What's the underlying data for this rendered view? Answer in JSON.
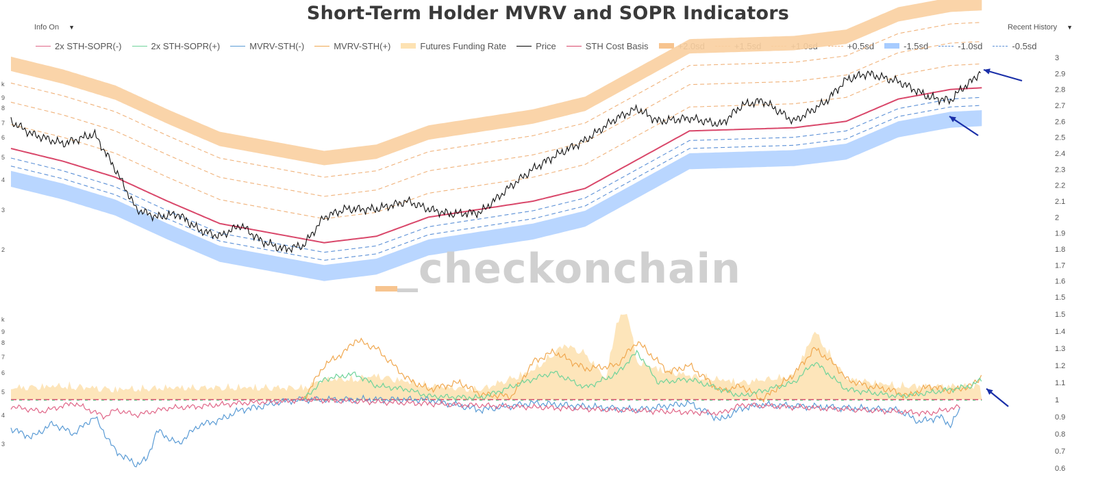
{
  "header": {
    "title": "Short-Term Holder MVRV and SOPR Indicators",
    "info_menu_label": "Info On",
    "history_menu_label": "Recent History",
    "dropdown_glyph": "▼"
  },
  "legend": [
    {
      "label": "2x STH-SOPR(-)",
      "color": "#e06688",
      "style": "solid"
    },
    {
      "label": "2x STH-SOPR(+)",
      "color": "#6fd39a",
      "style": "solid"
    },
    {
      "label": "MVRV-STH(-)",
      "color": "#5a9bd5",
      "style": "solid"
    },
    {
      "label": "MVRV-STH(+)",
      "color": "#f0a850",
      "style": "solid"
    },
    {
      "label": "Futures Funding Rate",
      "color": "#fde2b3",
      "style": "band"
    },
    {
      "label": "Price",
      "color": "#000000",
      "style": "solid"
    },
    {
      "label": "STH Cost Basis",
      "color": "#d9476a",
      "style": "solid"
    },
    {
      "label": "+2.0sd",
      "color": "#f7c48f",
      "style": "band"
    },
    {
      "label": "+1.5sd",
      "color": "#f0b27a",
      "style": "dashed"
    },
    {
      "label": "+1.0sd",
      "color": "#f0b27a",
      "style": "dashed"
    },
    {
      "label": "+0.5sd",
      "color": "#f0b27a",
      "style": "dashed"
    },
    {
      "label": "-1.5sd",
      "color": "#a7ccff",
      "style": "band"
    },
    {
      "label": "-1.0sd",
      "color": "#5a8fd6",
      "style": "dashed"
    },
    {
      "label": "-0.5sd",
      "color": "#5a8fd6",
      "style": "dashed"
    }
  ],
  "watermark": "_checkonchain",
  "chart_data": [
    {
      "type": "line",
      "panel": "price",
      "x_range": [
        0,
        100
      ],
      "y_left_ticks": [
        "k",
        "9",
        "8",
        "7",
        "6",
        "5",
        "4",
        "3",
        "2"
      ],
      "y_right_ticks": [
        "3",
        "2.9",
        "2.8",
        "2.7",
        "2.6",
        "2.5",
        "2.4",
        "2.3",
        "2.2",
        "2.1",
        "2",
        "1.9",
        "1.8",
        "1.7",
        "1.6",
        "1.5"
      ],
      "y_right_range": [
        1.5,
        3.0
      ],
      "series": [
        {
          "name": "STH Cost Basis",
          "x": [
            0,
            5,
            10,
            15,
            20,
            25,
            30,
            35,
            40,
            45,
            50,
            55,
            60,
            65,
            70,
            75,
            80,
            85,
            90,
            93
          ],
          "y": [
            2.43,
            2.35,
            2.25,
            2.1,
            1.96,
            1.9,
            1.84,
            1.88,
            2.0,
            2.05,
            2.1,
            2.18,
            2.36,
            2.54,
            2.55,
            2.56,
            2.6,
            2.74,
            2.8,
            2.81
          ]
        },
        {
          "name": "Price",
          "x": [
            0,
            2,
            5,
            8,
            10,
            12,
            14,
            16,
            18,
            20,
            22,
            24,
            26,
            28,
            30,
            32,
            35,
            38,
            40,
            42,
            45,
            48,
            50,
            52,
            55,
            58,
            60,
            62,
            65,
            68,
            70,
            72,
            75,
            78,
            80,
            82,
            85,
            88,
            90,
            91,
            92,
            93
          ],
          "y": [
            2.6,
            2.52,
            2.46,
            2.52,
            2.3,
            2.05,
            2.0,
            2.02,
            1.92,
            1.88,
            1.95,
            1.85,
            1.8,
            1.82,
            2.0,
            2.05,
            2.05,
            2.1,
            2.05,
            2.02,
            2.03,
            2.2,
            2.3,
            2.38,
            2.48,
            2.62,
            2.68,
            2.6,
            2.62,
            2.58,
            2.7,
            2.73,
            2.6,
            2.72,
            2.86,
            2.9,
            2.85,
            2.75,
            2.73,
            2.8,
            2.85,
            2.92
          ]
        }
      ],
      "bands": {
        "plus_2sd_offset": 0.53,
        "plus_1_5sd_offset": 0.41,
        "plus_1sd_offset": 0.29,
        "plus_0_5sd_offset": 0.15,
        "minus_0_5sd_offset": -0.06,
        "minus_1sd_offset": -0.11,
        "minus_1_5sd_offset": -0.19
      }
    },
    {
      "type": "line",
      "panel": "oscillator",
      "x_range": [
        0,
        100
      ],
      "y_left_ticks": [
        "k",
        "9",
        "8",
        "7",
        "6",
        "5",
        "4",
        "3"
      ],
      "y_right_ticks": [
        "1.5",
        "1.4",
        "1.3",
        "1.2",
        "1.1",
        "1",
        "0.9",
        "0.8",
        "0.7",
        "0.6"
      ],
      "y_right_range": [
        0.6,
        1.5
      ],
      "reference_line": 1.0,
      "series": [
        {
          "name": "MVRV-STH(+)",
          "x": [
            28,
            30,
            32,
            33,
            35,
            38,
            40,
            43,
            45,
            48,
            50,
            52,
            55,
            58,
            60,
            63,
            65,
            68,
            70,
            72,
            75,
            77,
            79,
            80,
            82,
            84,
            86,
            88,
            90,
            92,
            93
          ],
          "y": [
            1.0,
            1.2,
            1.28,
            1.35,
            1.3,
            1.12,
            1.06,
            1.1,
            1.03,
            1.02,
            1.22,
            1.28,
            1.18,
            1.2,
            1.34,
            1.16,
            1.2,
            1.05,
            1.08,
            1.0,
            1.15,
            1.3,
            1.2,
            1.12,
            1.08,
            1.06,
            1.02,
            1.08,
            1.05,
            1.08,
            1.14
          ]
        },
        {
          "name": "2x STH-SOPR(+)",
          "x": [
            28,
            30,
            33,
            35,
            38,
            40,
            45,
            50,
            52,
            55,
            58,
            60,
            62,
            65,
            70,
            75,
            77,
            80,
            85,
            88,
            92,
            93
          ],
          "y": [
            1.0,
            1.12,
            1.15,
            1.08,
            1.06,
            1.02,
            1.01,
            1.12,
            1.16,
            1.07,
            1.15,
            1.28,
            1.1,
            1.12,
            1.02,
            1.1,
            1.22,
            1.06,
            1.02,
            1.04,
            1.08,
            1.12
          ]
        },
        {
          "name": "MVRV-STH(-)",
          "x": [
            0,
            2,
            4,
            6,
            8,
            10,
            12,
            13,
            14,
            16,
            18,
            20,
            22,
            24,
            26,
            28,
            40,
            45,
            50,
            60,
            65,
            68,
            70,
            72,
            85,
            87,
            89,
            90,
            91
          ],
          "y": [
            0.83,
            0.78,
            0.86,
            0.8,
            0.9,
            0.7,
            0.62,
            0.65,
            0.82,
            0.74,
            0.85,
            0.88,
            0.94,
            0.96,
            0.99,
            1.0,
            1.0,
            0.94,
            0.98,
            0.94,
            0.98,
            0.88,
            0.95,
            0.97,
            0.94,
            0.87,
            0.9,
            0.85,
            0.95
          ]
        },
        {
          "name": "2x STH-SOPR(-)",
          "x": [
            0,
            3,
            6,
            9,
            10,
            12,
            15,
            18,
            22,
            26,
            28,
            68,
            70,
            85,
            88,
            91
          ],
          "y": [
            0.96,
            0.93,
            0.98,
            0.9,
            0.94,
            0.91,
            0.95,
            0.96,
            0.98,
            0.99,
            1.0,
            0.92,
            0.97,
            0.93,
            0.92,
            0.96
          ]
        },
        {
          "name": "Futures Funding Rate",
          "x": [
            0,
            5,
            10,
            15,
            20,
            25,
            28,
            30,
            33,
            35,
            40,
            45,
            50,
            53,
            55,
            57,
            58,
            59,
            60,
            62,
            65,
            70,
            75,
            77,
            80,
            85,
            90,
            93
          ],
          "y": [
            1.05,
            1.06,
            1.04,
            1.05,
            1.05,
            1.05,
            1.05,
            1.1,
            1.1,
            1.12,
            1.06,
            1.04,
            1.15,
            1.3,
            1.25,
            1.1,
            1.43,
            1.5,
            1.2,
            1.16,
            1.12,
            1.08,
            1.12,
            1.38,
            1.1,
            1.06,
            1.06,
            1.06
          ]
        }
      ]
    }
  ]
}
